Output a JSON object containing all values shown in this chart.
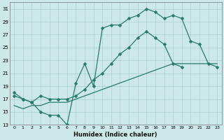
{
  "xlabel": "Humidex (Indice chaleur)",
  "x_values": [
    0,
    1,
    2,
    3,
    4,
    5,
    6,
    7,
    8,
    9,
    10,
    11,
    12,
    13,
    14,
    15,
    16,
    17,
    18,
    19,
    20,
    21,
    22,
    23
  ],
  "line1_y": [
    18.0,
    17.0,
    16.5,
    15.0,
    14.5,
    14.5,
    13.0,
    19.5,
    22.5,
    19.0,
    28.0,
    28.5,
    28.5,
    29.5,
    30.0,
    31.0,
    30.5,
    29.5,
    30.0,
    29.5,
    26.0,
    25.5,
    22.5,
    22.0
  ],
  "line2_y": [
    17.5,
    17.0,
    16.5,
    17.5,
    17.0,
    17.0,
    17.0,
    17.5,
    18.5,
    20.0,
    21.0,
    22.5,
    24.0,
    25.0,
    26.5,
    27.5,
    26.5,
    25.5,
    22.5,
    22.0,
    null,
    null,
    null,
    null
  ],
  "line3_y": [
    16.0,
    15.5,
    16.0,
    16.0,
    16.5,
    16.5,
    16.5,
    17.0,
    17.5,
    18.0,
    18.5,
    19.0,
    19.5,
    20.0,
    20.5,
    21.0,
    21.5,
    22.0,
    22.5,
    22.5,
    22.5,
    22.5,
    22.5,
    22.5
  ],
  "line_color": "#2a7a6a",
  "bg_color": "#cde8e8",
  "grid_color": "#aacfcf",
  "ylim": [
    13,
    32
  ],
  "xlim": [
    -0.5,
    23.5
  ],
  "yticks": [
    13,
    15,
    17,
    19,
    21,
    23,
    25,
    27,
    29,
    31
  ],
  "xtick_labels": [
    "0",
    "1",
    "2",
    "3",
    "4",
    "5",
    "6",
    "7",
    "8",
    "9",
    "10",
    "11",
    "12",
    "13",
    "14",
    "15",
    "16",
    "17",
    "18",
    "19",
    "20",
    "21",
    "22",
    "23"
  ]
}
